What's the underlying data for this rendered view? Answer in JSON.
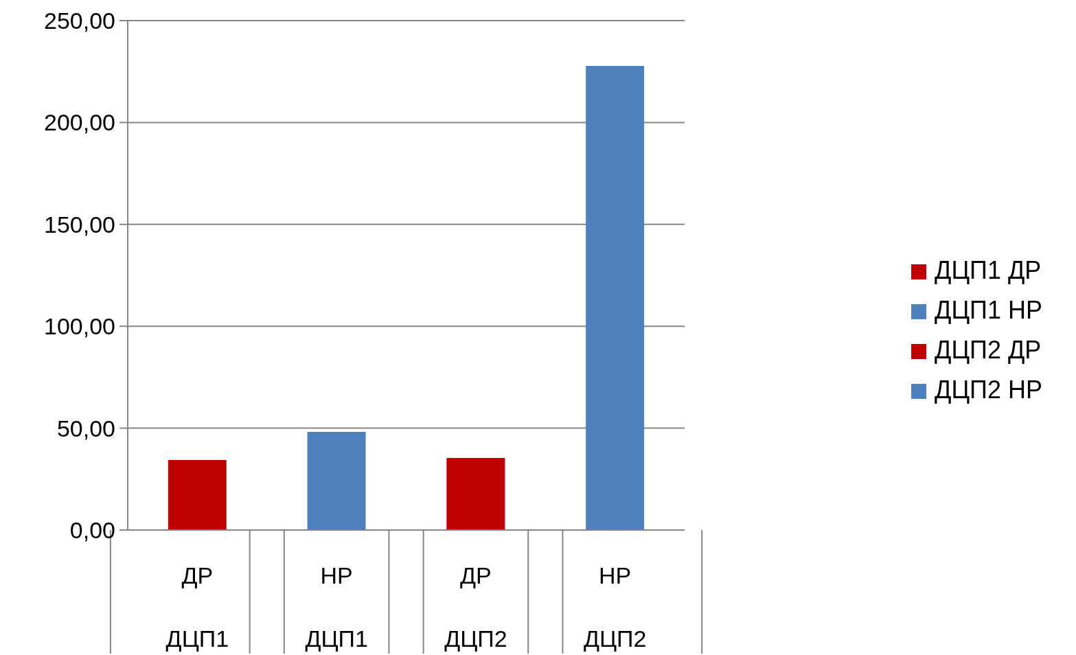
{
  "chart_data": {
    "type": "bar",
    "stacked": true,
    "categories": [
      "ДР\nДЦП1",
      "НР\nДЦП1",
      "ДР\nДЦП2",
      "НР\nДЦП2"
    ],
    "series": [
      {
        "name": "ДЦП1 ДР",
        "color": "#c00000",
        "values": [
          34.4,
          null,
          null,
          null
        ]
      },
      {
        "name": "ДЦП1 НР",
        "color": "#4f81bd",
        "values": [
          null,
          48.2,
          null,
          null
        ]
      },
      {
        "name": "ДЦП2 ДР",
        "color": "#c00000",
        "values": [
          null,
          null,
          35.4,
          null
        ]
      },
      {
        "name": "ДЦП2 НР",
        "color": "#4f81bd",
        "values": [
          null,
          null,
          null,
          227.8
        ]
      }
    ],
    "ylim": [
      0,
      250
    ],
    "yticks": [
      {
        "value": 0,
        "label": "0,00"
      },
      {
        "value": 50,
        "label": "50,00"
      },
      {
        "value": 100,
        "label": "100,00"
      },
      {
        "value": 150,
        "label": "150,00"
      },
      {
        "value": 200,
        "label": "200,00"
      },
      {
        "value": 250,
        "label": "250,00"
      }
    ],
    "grid": "y",
    "legend": "right"
  }
}
